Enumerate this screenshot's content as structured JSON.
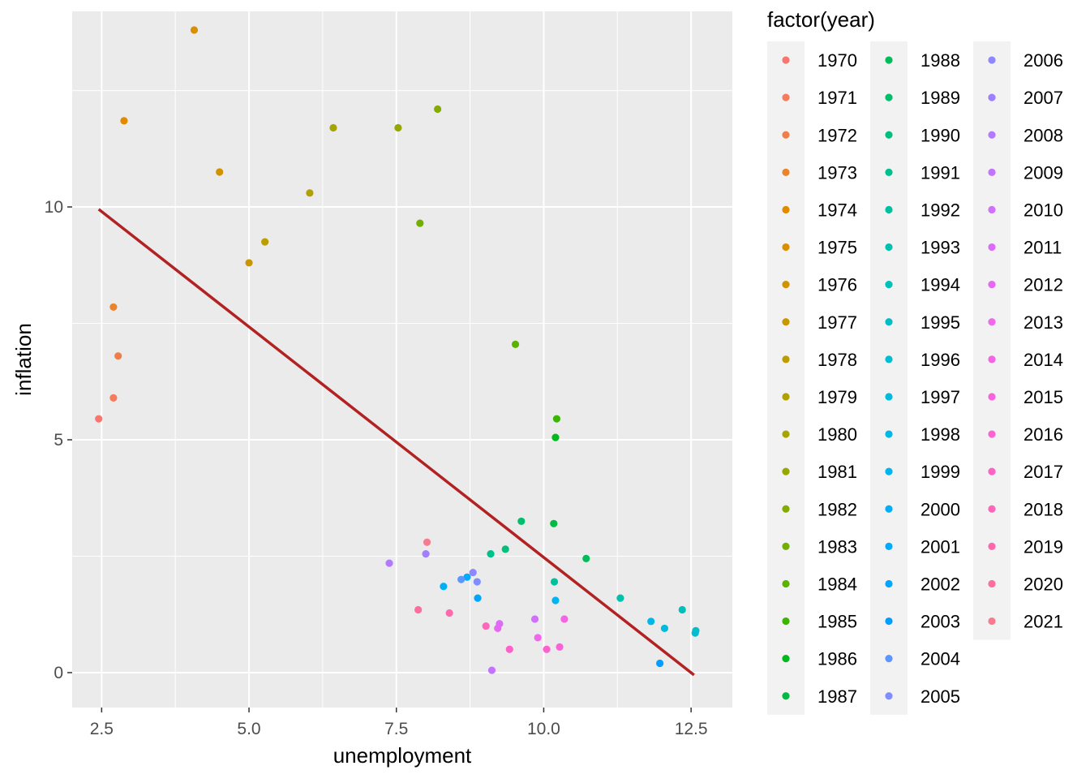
{
  "chart_data": {
    "type": "scatter",
    "xlabel": "unemployment",
    "ylabel": "inflation",
    "xlim": [
      2.0,
      13.2
    ],
    "ylim": [
      -0.75,
      14.2
    ],
    "x_ticks": [
      {
        "value": 2.5,
        "label": "2.5"
      },
      {
        "value": 5.0,
        "label": "5.0"
      },
      {
        "value": 7.5,
        "label": "7.5"
      },
      {
        "value": 10.0,
        "label": "10.0"
      },
      {
        "value": 12.5,
        "label": "12.5"
      }
    ],
    "y_ticks": [
      {
        "value": 0,
        "label": "0"
      },
      {
        "value": 5,
        "label": "5"
      },
      {
        "value": 10,
        "label": "10"
      }
    ],
    "grid": true,
    "legend": {
      "title": "factor(year)",
      "placement": "right",
      "entries": [
        "1970",
        "1971",
        "1972",
        "1973",
        "1974",
        "1975",
        "1976",
        "1977",
        "1978",
        "1979",
        "1980",
        "1981",
        "1982",
        "1983",
        "1984",
        "1985",
        "1986",
        "1987",
        "1988",
        "1989",
        "1990",
        "1991",
        "1992",
        "1993",
        "1994",
        "1995",
        "1996",
        "1997",
        "1998",
        "1999",
        "2000",
        "2001",
        "2002",
        "2003",
        "2004",
        "2005",
        "2006",
        "2007",
        "2008",
        "2009",
        "2010",
        "2011",
        "2012",
        "2013",
        "2014",
        "2015",
        "2016",
        "2017",
        "2018",
        "2019",
        "2020",
        "2021"
      ]
    },
    "colors": [
      "#F8766D",
      "#F47B5C",
      "#EF7F4A",
      "#E9842C",
      "#E28900",
      "#DA8E00",
      "#D19200",
      "#C89700",
      "#BD9C00",
      "#B2A000",
      "#A5A400",
      "#96A800",
      "#86AB00",
      "#73AF00",
      "#5BB300",
      "#3BB600",
      "#00B81F",
      "#00BA42",
      "#00BC59",
      "#00BE6C",
      "#00BF7D",
      "#00C08E",
      "#00C19E",
      "#00C1AD",
      "#00C0BB",
      "#00BFC4",
      "#00BDD2",
      "#00BBDD",
      "#00B8E7",
      "#00B4EF",
      "#00B0F6",
      "#00ABFD",
      "#00A5FF",
      "#009EFF",
      "#5C96FF",
      "#7F8DFF",
      "#8E88FF",
      "#A07FFF",
      "#B27AFF",
      "#C274FF",
      "#D070FD",
      "#DC6BF8",
      "#E668F2",
      "#EF67EB",
      "#F564E3",
      "#F962DA",
      "#FC62D0",
      "#FD63C6",
      "#FF66B9",
      "#FF68AC",
      "#FF6C9E",
      "#F67C8F"
    ],
    "series_color_note": "points colored by year using legend colors",
    "trend_line": {
      "color": "#B22222",
      "x": [
        2.45,
        12.55
      ],
      "y": [
        9.95,
        -0.05
      ]
    },
    "points": [
      {
        "year": "1970",
        "x": 2.45,
        "y": 5.45
      },
      {
        "year": "1971",
        "x": 2.7,
        "y": 5.9
      },
      {
        "year": "1972",
        "x": 2.78,
        "y": 6.8
      },
      {
        "year": "1973",
        "x": 2.7,
        "y": 7.85
      },
      {
        "year": "1974",
        "x": 2.88,
        "y": 11.85
      },
      {
        "year": "1975",
        "x": 4.07,
        "y": 13.8
      },
      {
        "year": "1976",
        "x": 4.5,
        "y": 10.75
      },
      {
        "year": "1977",
        "x": 5.0,
        "y": 8.8
      },
      {
        "year": "1978",
        "x": 5.27,
        "y": 9.25
      },
      {
        "year": "1979",
        "x": 6.03,
        "y": 10.3
      },
      {
        "year": "1980",
        "x": 6.43,
        "y": 11.7
      },
      {
        "year": "1981",
        "x": 7.53,
        "y": 11.7
      },
      {
        "year": "1982",
        "x": 8.2,
        "y": 12.1
      },
      {
        "year": "1983",
        "x": 7.9,
        "y": 9.65
      },
      {
        "year": "1984",
        "x": 9.52,
        "y": 7.05
      },
      {
        "year": "1985",
        "x": 10.22,
        "y": 5.45
      },
      {
        "year": "1986",
        "x": 10.2,
        "y": 5.05
      },
      {
        "year": "1987",
        "x": 10.17,
        "y": 3.2
      },
      {
        "year": "1988",
        "x": 10.72,
        "y": 2.45
      },
      {
        "year": "1989",
        "x": 9.62,
        "y": 3.25
      },
      {
        "year": "1990",
        "x": 9.35,
        "y": 2.65
      },
      {
        "year": "1991",
        "x": 9.1,
        "y": 2.55
      },
      {
        "year": "1992",
        "x": 10.18,
        "y": 1.95
      },
      {
        "year": "1993",
        "x": 11.3,
        "y": 1.6
      },
      {
        "year": "1994",
        "x": 12.35,
        "y": 1.35
      },
      {
        "year": "1995",
        "x": 12.58,
        "y": 0.9
      },
      {
        "year": "1996",
        "x": 12.57,
        "y": 0.85
      },
      {
        "year": "1997",
        "x": 12.05,
        "y": 0.95
      },
      {
        "year": "1998",
        "x": 11.82,
        "y": 1.1
      },
      {
        "year": "1999",
        "x": 10.2,
        "y": 1.55
      },
      {
        "year": "2000",
        "x": 8.3,
        "y": 1.85
      },
      {
        "year": "2001",
        "x": 8.7,
        "y": 2.05
      },
      {
        "year": "2002",
        "x": 8.88,
        "y": 1.6
      },
      {
        "year": "2003",
        "x": 11.97,
        "y": 0.2
      },
      {
        "year": "2004",
        "x": 8.6,
        "y": 2.0
      },
      {
        "year": "2005",
        "x": 8.87,
        "y": 1.95
      },
      {
        "year": "2006",
        "x": 8.8,
        "y": 2.15
      },
      {
        "year": "2007",
        "x": 8.0,
        "y": 2.55
      },
      {
        "year": "2008",
        "x": 7.38,
        "y": 2.35
      },
      {
        "year": "2009",
        "x": 9.12,
        "y": 0.05
      },
      {
        "year": "2010",
        "x": 9.85,
        "y": 1.15
      },
      {
        "year": "2011",
        "x": 9.25,
        "y": 1.05
      },
      {
        "year": "2012",
        "x": 9.22,
        "y": 0.95
      },
      {
        "year": "2013",
        "x": 9.9,
        "y": 0.75
      },
      {
        "year": "2014",
        "x": 10.35,
        "y": 1.15
      },
      {
        "year": "2015",
        "x": 10.27,
        "y": 0.55
      },
      {
        "year": "2016",
        "x": 10.05,
        "y": 0.5
      },
      {
        "year": "2017",
        "x": 9.42,
        "y": 0.5
      },
      {
        "year": "2018",
        "x": 9.02,
        "y": 1.0
      },
      {
        "year": "2019",
        "x": 8.4,
        "y": 1.28
      },
      {
        "year": "2020",
        "x": 7.87,
        "y": 1.35
      },
      {
        "year": "2021",
        "x": 8.02,
        "y": 2.8
      }
    ]
  }
}
